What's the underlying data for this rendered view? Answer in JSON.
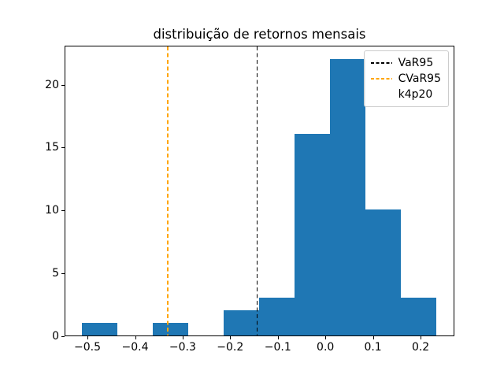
{
  "chart_data": {
    "type": "bar",
    "subtype": "histogram",
    "title": "distribuição de retornos mensais",
    "xlabel": "",
    "ylabel": "",
    "grid": false,
    "bar_color": "#1f77b4",
    "bin_edges": [
      -0.514,
      -0.439,
      -0.365,
      -0.29,
      -0.216,
      -0.141,
      -0.067,
      0.008,
      0.082,
      0.157,
      0.231
    ],
    "counts": [
      1,
      0,
      1,
      0,
      2,
      3,
      16,
      22,
      10,
      3
    ],
    "xlim": [
      -0.548,
      0.271
    ],
    "ylim": [
      0,
      23.1
    ],
    "xticks": [
      {
        "value": -0.5,
        "label": "−0.5"
      },
      {
        "value": -0.4,
        "label": "−0.4"
      },
      {
        "value": -0.3,
        "label": "−0.3"
      },
      {
        "value": -0.2,
        "label": "−0.2"
      },
      {
        "value": -0.1,
        "label": "−0.1"
      },
      {
        "value": 0.0,
        "label": "0.0"
      },
      {
        "value": 0.1,
        "label": "0.1"
      },
      {
        "value": 0.2,
        "label": "0.2"
      }
    ],
    "yticks": [
      {
        "value": 0,
        "label": "0"
      },
      {
        "value": 5,
        "label": "5"
      },
      {
        "value": 10,
        "label": "10"
      },
      {
        "value": 15,
        "label": "15"
      },
      {
        "value": 20,
        "label": "20"
      }
    ],
    "vlines": [
      {
        "name": "VaR95",
        "x": -0.145,
        "color": "#000000",
        "style": "dashed"
      },
      {
        "name": "CVaR95",
        "x": -0.333,
        "color": "#ffa500",
        "style": "dashed"
      }
    ],
    "legend": {
      "position": "upper-right",
      "entries": [
        {
          "label": "VaR95",
          "handle": "dashed-line",
          "color": "#000000"
        },
        {
          "label": "CVaR95",
          "handle": "dashed-line",
          "color": "#ffa500"
        },
        {
          "label": "k4p20",
          "handle": "none",
          "color": ""
        }
      ]
    }
  }
}
